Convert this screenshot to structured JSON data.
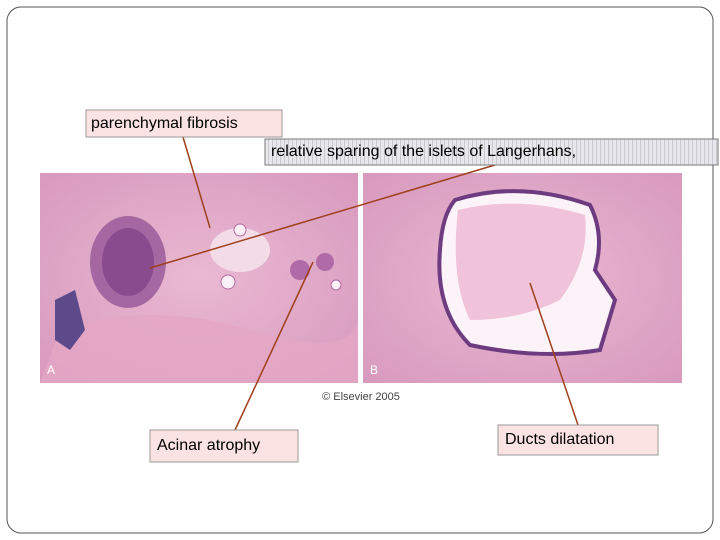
{
  "slide": {
    "labels": {
      "parenchymal_fibrosis": "parenchymal fibrosis",
      "islets": "relative sparing of the islets of Langerhans,",
      "acinar_atrophy": "Acinar atrophy",
      "ducts_dilatation": "Ducts dilatation"
    },
    "image": {
      "panel_a": "A",
      "panel_b": "B",
      "credit": "© Elsevier 2005"
    }
  }
}
